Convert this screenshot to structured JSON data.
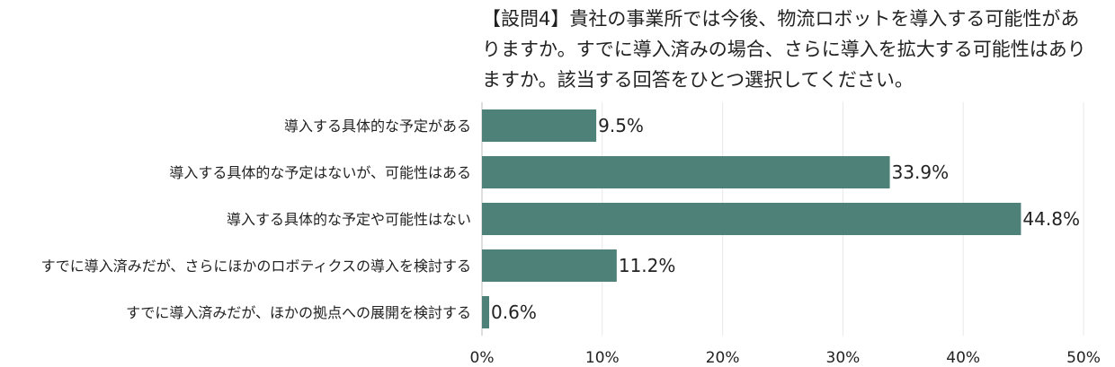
{
  "chart_data": {
    "type": "bar",
    "orientation": "horizontal",
    "title_lines": [
      "【設問4】貴社の事業所では今後、物流ロボットを導入する可能性があ",
      "りますか。すでに導入済みの場合、さらに導入を拡大する可能性はあり",
      "ますか。該当する回答をひとつ選択してください。"
    ],
    "categories": [
      "導入する具体的な予定がある",
      "導入する具体的な予定はないが、可能性はある",
      "導入する具体的な予定や可能性はない",
      "すでに導入済みだが、さらにほかのロボティクスの導入を検討する",
      "すでに導入済みだが、ほかの拠点への展開を検討する"
    ],
    "values": [
      9.5,
      33.9,
      44.8,
      11.2,
      0.6
    ],
    "value_labels": [
      "9.5%",
      "33.9%",
      "44.8%",
      "11.2%",
      "0.6%"
    ],
    "xlim": [
      0,
      50
    ],
    "x_ticks": [
      0,
      10,
      20,
      30,
      40,
      50
    ],
    "x_tick_labels": [
      "0%",
      "10%",
      "20%",
      "30%",
      "40%",
      "50%"
    ],
    "bar_color": "#4e8178",
    "grid": true
  }
}
